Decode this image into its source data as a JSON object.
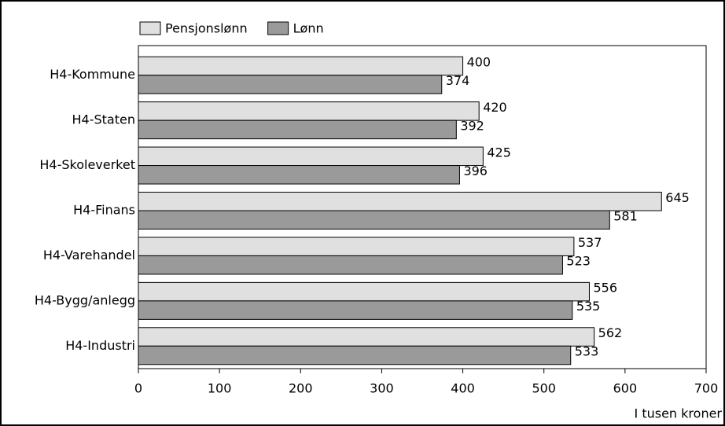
{
  "chart_data": {
    "type": "barh",
    "categories": [
      "H4-Kommune",
      "H4-Staten",
      "H4-Skoleverket",
      "H4-Finans",
      "H4-Varehandel",
      "H4-Bygg/anlegg",
      "H4-Industri"
    ],
    "series": [
      {
        "name": "Pensjonslønn",
        "color": "#e0e0e0",
        "values": [
          400,
          420,
          425,
          645,
          537,
          556,
          562
        ]
      },
      {
        "name": "Lønn",
        "color": "#9a9a9a",
        "values": [
          374,
          392,
          396,
          581,
          523,
          535,
          533
        ]
      }
    ],
    "xlim": [
      0,
      700
    ],
    "xticks": [
      0,
      100,
      200,
      300,
      400,
      500,
      600,
      700
    ],
    "x_label": "I tusen kroner"
  }
}
